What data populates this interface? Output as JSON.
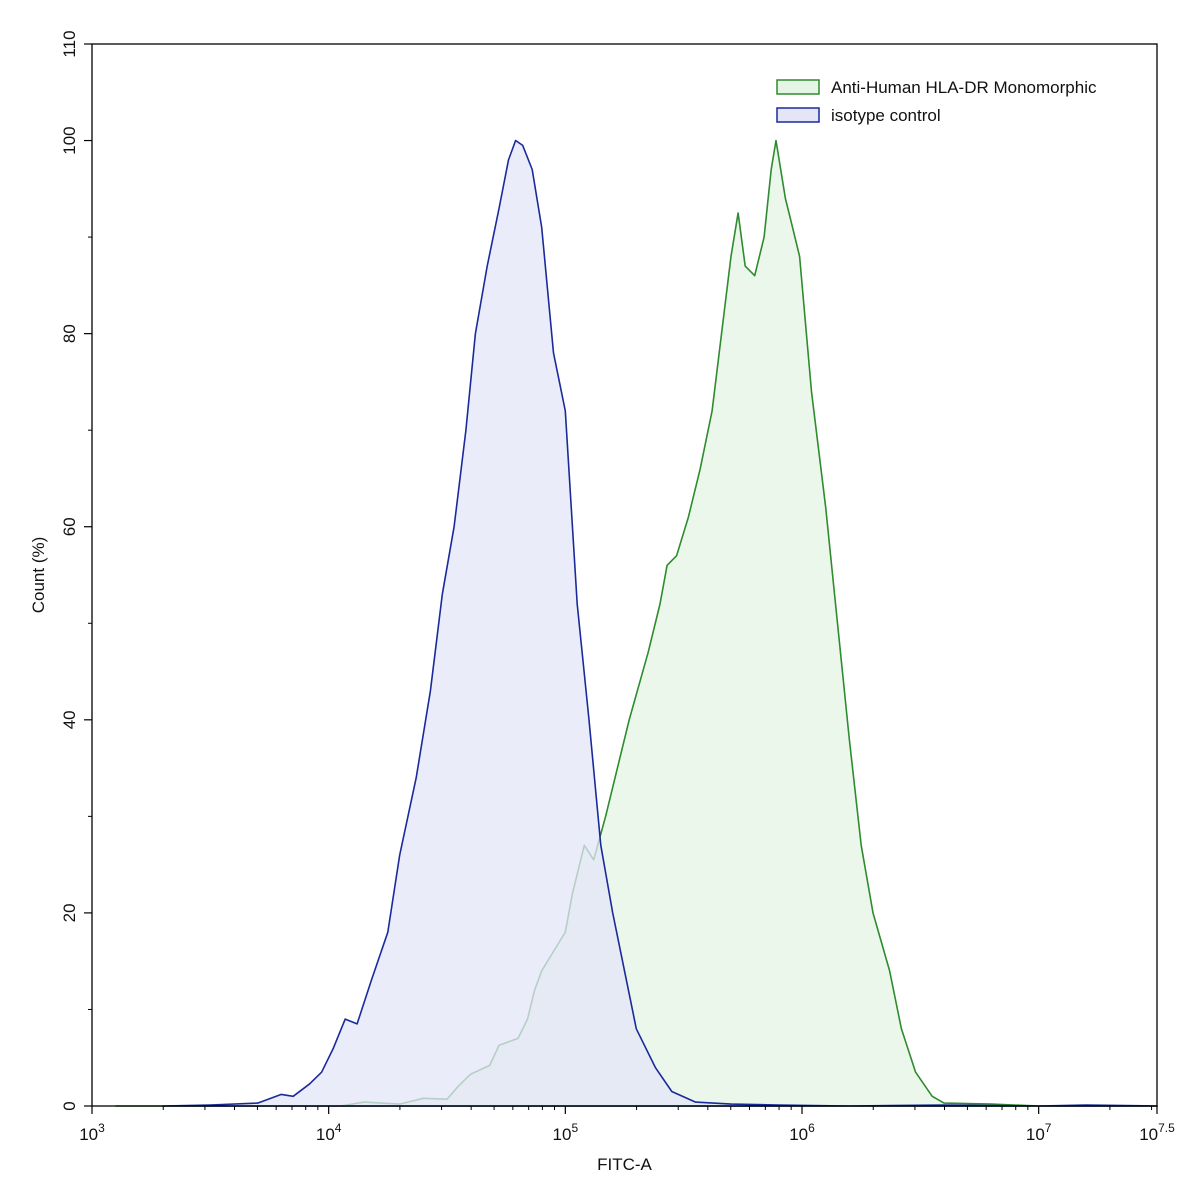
{
  "chart_data": {
    "type": "area",
    "xlabel": "FITC-A",
    "ylabel": "Count  (%)",
    "x_scale": "log10",
    "xlim_exponent": [
      3,
      7.5
    ],
    "ylim": [
      0,
      110
    ],
    "x_ticks": [
      {
        "base": "10",
        "exp": "3",
        "value": 3
      },
      {
        "base": "10",
        "exp": "4",
        "value": 4
      },
      {
        "base": "10",
        "exp": "5",
        "value": 5
      },
      {
        "base": "10",
        "exp": "6",
        "value": 6
      },
      {
        "base": "10",
        "exp": "7",
        "value": 7
      },
      {
        "base": "10",
        "exp": "7.5",
        "value": 7.5
      }
    ],
    "y_ticks": [
      "0",
      "20",
      "40",
      "60",
      "80",
      "100",
      "110"
    ],
    "grid": false,
    "legend_position": "top-right",
    "series": [
      {
        "name": "Anti-Human HLA-DR Monomorphic",
        "line_color": "#2e8b2e",
        "fill_color": "#e6f4e6",
        "points": [
          [
            3.1,
            0
          ],
          [
            4.05,
            0
          ],
          [
            4.15,
            0.4
          ],
          [
            4.3,
            0.2
          ],
          [
            4.4,
            0.8
          ],
          [
            4.5,
            0.7
          ],
          [
            4.55,
            2.1
          ],
          [
            4.6,
            3.3
          ],
          [
            4.68,
            4.2
          ],
          [
            4.72,
            6.3
          ],
          [
            4.8,
            7
          ],
          [
            4.84,
            9
          ],
          [
            4.87,
            12
          ],
          [
            4.9,
            14
          ],
          [
            4.95,
            16
          ],
          [
            5.0,
            18
          ],
          [
            5.03,
            22
          ],
          [
            5.08,
            27
          ],
          [
            5.12,
            25.5
          ],
          [
            5.17,
            30
          ],
          [
            5.22,
            35
          ],
          [
            5.27,
            40
          ],
          [
            5.35,
            47
          ],
          [
            5.4,
            52
          ],
          [
            5.43,
            56
          ],
          [
            5.47,
            57
          ],
          [
            5.52,
            61
          ],
          [
            5.57,
            66
          ],
          [
            5.62,
            72
          ],
          [
            5.67,
            82
          ],
          [
            5.7,
            88
          ],
          [
            5.73,
            92.5
          ],
          [
            5.76,
            87
          ],
          [
            5.8,
            86
          ],
          [
            5.84,
            90
          ],
          [
            5.87,
            97
          ],
          [
            5.89,
            100
          ],
          [
            5.93,
            94
          ],
          [
            5.95,
            92
          ],
          [
            5.99,
            88
          ],
          [
            6.04,
            74
          ],
          [
            6.07,
            68
          ],
          [
            6.1,
            62
          ],
          [
            6.15,
            50
          ],
          [
            6.2,
            38
          ],
          [
            6.25,
            27
          ],
          [
            6.3,
            20
          ],
          [
            6.37,
            14
          ],
          [
            6.42,
            8
          ],
          [
            6.48,
            3.5
          ],
          [
            6.55,
            1
          ],
          [
            6.6,
            0.3
          ],
          [
            6.8,
            0.2
          ],
          [
            7.0,
            0
          ],
          [
            7.5,
            0
          ]
        ]
      },
      {
        "name": "isotype control",
        "line_color": "#1a2a9a",
        "fill_color": "#e4e6f8",
        "points": [
          [
            3.3,
            0
          ],
          [
            3.5,
            0.1
          ],
          [
            3.7,
            0.3
          ],
          [
            3.8,
            1.2
          ],
          [
            3.85,
            1
          ],
          [
            3.92,
            2.3
          ],
          [
            3.97,
            3.5
          ],
          [
            4.02,
            6
          ],
          [
            4.07,
            9
          ],
          [
            4.12,
            8.5
          ],
          [
            4.18,
            13
          ],
          [
            4.25,
            18
          ],
          [
            4.3,
            26
          ],
          [
            4.37,
            34
          ],
          [
            4.43,
            43
          ],
          [
            4.48,
            53
          ],
          [
            4.53,
            60
          ],
          [
            4.58,
            70
          ],
          [
            4.62,
            80
          ],
          [
            4.67,
            87
          ],
          [
            4.72,
            93
          ],
          [
            4.76,
            98
          ],
          [
            4.79,
            100
          ],
          [
            4.82,
            99.5
          ],
          [
            4.86,
            97
          ],
          [
            4.9,
            91
          ],
          [
            4.95,
            78
          ],
          [
            5.0,
            72
          ],
          [
            5.05,
            52
          ],
          [
            5.1,
            40
          ],
          [
            5.15,
            27
          ],
          [
            5.2,
            20
          ],
          [
            5.25,
            14
          ],
          [
            5.3,
            8
          ],
          [
            5.38,
            4
          ],
          [
            5.45,
            1.5
          ],
          [
            5.55,
            0.4
          ],
          [
            5.7,
            0.2
          ],
          [
            5.9,
            0.1
          ],
          [
            6.2,
            0
          ],
          [
            6.6,
            0.1
          ],
          [
            7.0,
            0
          ],
          [
            7.2,
            0.1
          ],
          [
            7.5,
            0
          ]
        ]
      }
    ]
  }
}
